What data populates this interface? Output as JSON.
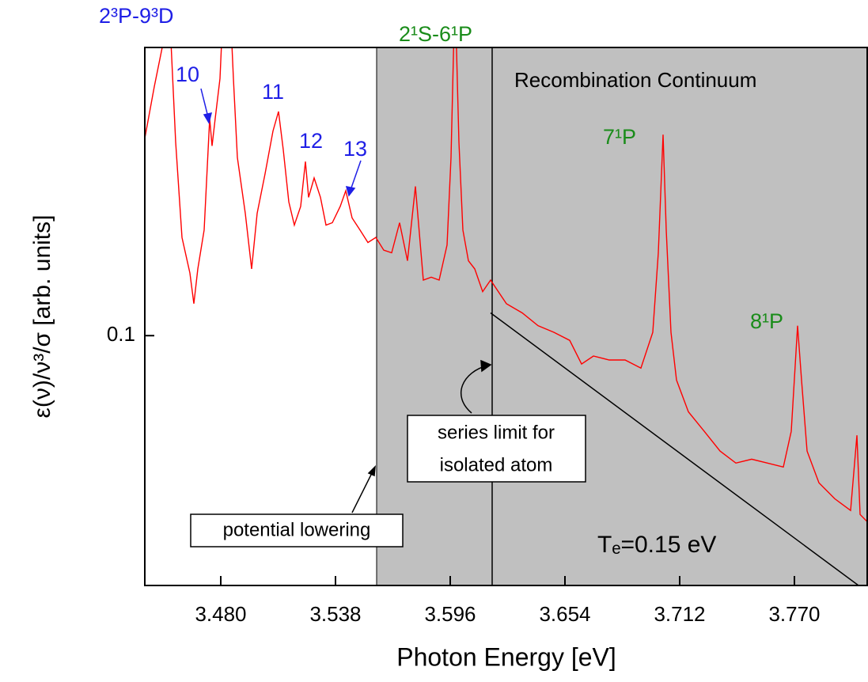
{
  "chart_data": {
    "type": "line",
    "x_label": "Photon Energy [eV]",
    "y_label": "ε(ν)/ν³/σ [arb. units]",
    "xlim": [
      3.4416,
      3.8072
    ],
    "ylim": [
      0.0475,
      0.236
    ],
    "log_y": true,
    "xticks": [
      {
        "value": 3.48,
        "label": "3.480"
      },
      {
        "value": 3.538,
        "label": "3.538"
      },
      {
        "value": 3.596,
        "label": "3.596"
      },
      {
        "value": 3.654,
        "label": "3.654"
      },
      {
        "value": 3.712,
        "label": "3.712"
      },
      {
        "value": 3.77,
        "label": "3.770"
      }
    ],
    "yticks": [
      0.1
    ],
    "shade_from": 3.5588,
    "shade_color": "#c0c0c0",
    "vline": 3.6172,
    "series": [
      {
        "color": "#ff0000",
        "x": [
          3.4416,
          3.4464,
          3.4504,
          3.4536,
          3.4572,
          3.4604,
          3.4644,
          3.4664,
          3.4684,
          3.4716,
          3.4744,
          3.4756,
          3.4772,
          3.4796,
          3.4816,
          3.4844,
          3.4864,
          3.4884,
          3.4924,
          3.4956,
          3.4984,
          3.5024,
          3.5064,
          3.5092,
          3.5116,
          3.5144,
          3.5172,
          3.5204,
          3.5228,
          3.5244,
          3.5272,
          3.5304,
          3.5332,
          3.5364,
          3.5404,
          3.5432,
          3.5464,
          3.5504,
          3.5544,
          3.5584,
          3.5624,
          3.5664,
          3.5704,
          3.5744,
          3.5784,
          3.5824,
          3.5864,
          3.5904,
          3.5944,
          3.5964,
          3.5984,
          3.6004,
          3.6024,
          3.6052,
          3.6084,
          3.6124,
          3.6164,
          3.6244,
          3.6324,
          3.6404,
          3.6484,
          3.6564,
          3.6624,
          3.6684,
          3.6764,
          3.6844,
          3.6924,
          3.6984,
          3.7012,
          3.7036,
          3.7052,
          3.7076,
          3.7104,
          3.7164,
          3.7244,
          3.7324,
          3.7404,
          3.7484,
          3.7564,
          3.7644,
          3.7684,
          3.7716,
          3.7736,
          3.7764,
          3.7824,
          3.7904,
          3.7984,
          3.8016,
          3.8032,
          3.8072
        ],
        "values": [
          0.18,
          0.21,
          0.236,
          0.28,
          0.178,
          0.134,
          0.1205,
          0.11,
          0.122,
          0.137,
          0.191,
          0.176,
          0.191,
          0.215,
          0.28,
          0.28,
          0.215,
          0.17,
          0.144,
          0.122,
          0.144,
          0.162,
          0.184,
          0.195,
          0.174,
          0.149,
          0.139,
          0.147,
          0.168,
          0.151,
          0.16,
          0.151,
          0.139,
          0.14,
          0.147,
          0.154,
          0.142,
          0.137,
          0.132,
          0.134,
          0.129,
          0.128,
          0.14,
          0.125,
          0.156,
          0.118,
          0.119,
          0.118,
          0.131,
          0.17,
          0.28,
          0.178,
          0.137,
          0.125,
          0.122,
          0.114,
          0.118,
          0.11,
          0.107,
          0.103,
          0.101,
          0.0986,
          0.0919,
          0.0941,
          0.093,
          0.093,
          0.0908,
          0.101,
          0.128,
          0.182,
          0.137,
          0.101,
          0.0876,
          0.0797,
          0.0752,
          0.0709,
          0.0684,
          0.0692,
          0.0684,
          0.0676,
          0.0752,
          0.103,
          0.0876,
          0.0709,
          0.0645,
          0.0615,
          0.0594,
          0.0743,
          0.0587,
          0.0573
        ]
      }
    ],
    "fit_line": {
      "x": [
        3.6164,
        3.8024
      ],
      "values": [
        0.107,
        0.0475
      ],
      "color": "#000000"
    },
    "annotations": [
      {
        "text": "2³P-9³D"
      },
      {
        "text": "2¹S-6¹P"
      },
      {
        "text": "Recombination Continuum"
      },
      {
        "text": "10"
      },
      {
        "text": "11"
      },
      {
        "text": "12"
      },
      {
        "text": "13"
      },
      {
        "text": "7¹P"
      },
      {
        "text": "8¹P"
      },
      {
        "text": "Tₑ=0.15 eV"
      },
      {
        "text": [
          "series limit for",
          "isolated atom"
        ]
      },
      {
        "text": "potential lowering"
      }
    ]
  }
}
